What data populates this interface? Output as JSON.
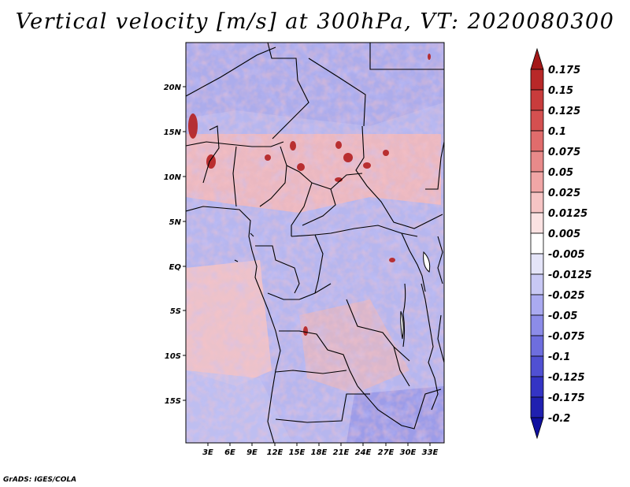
{
  "title": "Vertical velocity [m/s] at 300hPa, VT: 2020080300",
  "credit": "GrADS: IGES/COLA",
  "map": {
    "variable": "Vertical velocity",
    "units": "m/s",
    "level": "300hPa",
    "valid_time": "2020080300",
    "lat_ticks": [
      "20N",
      "15N",
      "10N",
      "5N",
      "EQ",
      "5S",
      "10S",
      "15S"
    ],
    "lon_ticks": [
      "3E",
      "6E",
      "9E",
      "12E",
      "15E",
      "18E",
      "21E",
      "24E",
      "27E",
      "30E",
      "33E"
    ]
  },
  "colorbar": {
    "levels": [
      "0.175",
      "0.15",
      "0.125",
      "0.1",
      "0.075",
      "0.05",
      "0.025",
      "0.0125",
      "0.005",
      "-0.005",
      "-0.0125",
      "-0.025",
      "-0.05",
      "-0.075",
      "-0.1",
      "-0.125",
      "-0.175",
      "-0.2"
    ],
    "colors": [
      "#a41818",
      "#b82828",
      "#c83c3c",
      "#d45050",
      "#e06c6c",
      "#e88a8a",
      "#f0a6a6",
      "#f6c4c4",
      "#fbe2e2",
      "#ffffff",
      "#e4e4f8",
      "#c8c8f4",
      "#aaaaf0",
      "#8c8ce8",
      "#6e6ede",
      "#5050d2",
      "#3434c4",
      "#2020b0",
      "#1010a0"
    ]
  }
}
